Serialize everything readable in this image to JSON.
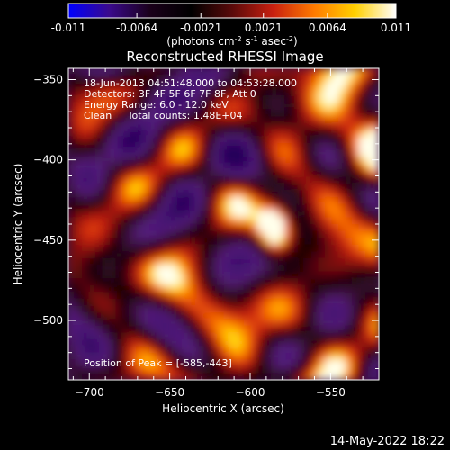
{
  "chart_data": {
    "type": "heatmap",
    "title": "Reconstructed RHESSI Image",
    "xlabel": "Heliocentric X (arcsec)",
    "ylabel": "Heliocentric Y (arcsec)",
    "xlim": [
      -713,
      -520
    ],
    "ylim": [
      -537,
      -343
    ],
    "x_ticks": [
      -700,
      -650,
      -600,
      -550
    ],
    "y_ticks": [
      -350,
      -400,
      -450,
      -500
    ],
    "colorbar": {
      "range": [
        -0.011,
        0.011
      ],
      "ticks": [
        "-0.011",
        "-0.0064",
        "-0.0021",
        "0.0021",
        "0.0064",
        "0.011"
      ],
      "tick_values": [
        -0.011,
        -0.0064,
        -0.0021,
        0.0021,
        0.0064,
        0.011
      ],
      "units_prefix": "(photons cm",
      "units_exp1": "-2",
      "units_mid": " s",
      "units_exp2": "-1",
      "units_mid2": " asec",
      "units_exp3": "-2",
      "units_suffix": ")",
      "stops": [
        "#0000ff",
        "#3a0a8c",
        "#1a001a",
        "#000000",
        "#5a0a0a",
        "#c82010",
        "#ff7a00",
        "#ffd000",
        "#ffffff"
      ]
    },
    "annotations": [
      "18-Jun-2013 04:51:48.000 to 04:53:28.000",
      "Detectors: 3F 4F 5F 6F 7F 8F, Att 0",
      "Energy Range: 6.0 - 12.0 keV",
      "Clean     Total counts: 1.48E+04"
    ],
    "peak_label": "Position of Peak = [-585,-443]",
    "peak": {
      "x": -585,
      "y": -443,
      "value": 0.011
    }
  },
  "footer": {
    "timestamp": "14-May-2022 18:22"
  }
}
